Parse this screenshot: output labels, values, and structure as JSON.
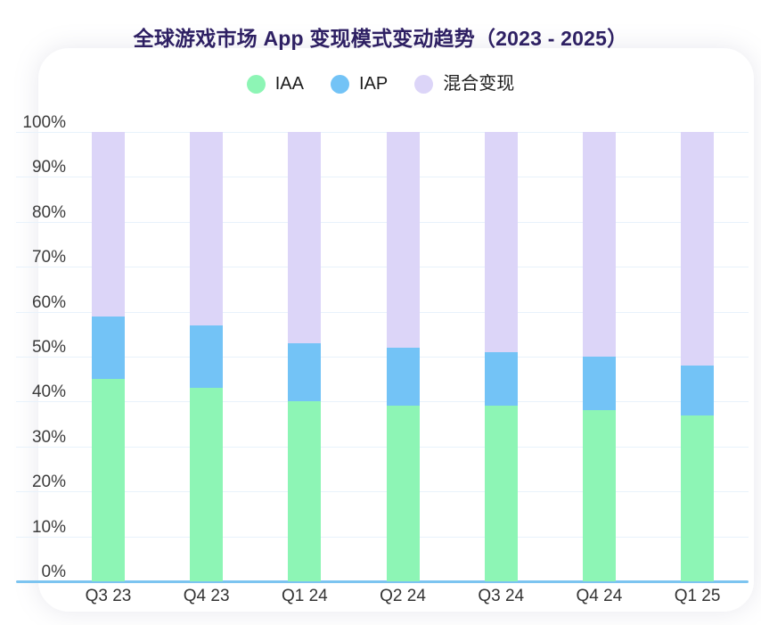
{
  "page": {
    "title": "全球游戏市场 App 变现模式变动趋势（2023 - 2025）"
  },
  "chart_data": {
    "type": "bar",
    "stacked": true,
    "title": "全球游戏市场 App 变现模式变动趋势（2023 - 2025）",
    "unit": "%",
    "categories": [
      "Q3 23",
      "Q4 23",
      "Q1 24",
      "Q2 24",
      "Q3 24",
      "Q4 24",
      "Q1 25"
    ],
    "series": [
      {
        "key": "iaa",
        "name": "IAA",
        "color": "#8df5b5",
        "values": [
          45,
          43,
          40,
          39,
          39,
          38,
          37
        ]
      },
      {
        "key": "iap",
        "name": "IAP",
        "color": "#73c3f6",
        "values": [
          14,
          14,
          13,
          13,
          12,
          12,
          11
        ]
      },
      {
        "key": "mixed",
        "name": "混合变现",
        "color": "#dcd5f8",
        "values": [
          41,
          43,
          47,
          48,
          49,
          50,
          52
        ]
      }
    ],
    "ylim": [
      0,
      100
    ],
    "y_ticks": [
      "100%",
      "90%",
      "80%",
      "70%",
      "60%",
      "50%",
      "40%",
      "30%",
      "20%",
      "10%",
      "0%"
    ],
    "grid": true,
    "legend_position": "top"
  },
  "colors": {
    "title_text": "#2e2063",
    "axis_label_text": "#3c3c3c",
    "x_label_text": "#333333",
    "legend_text": "#1c1c1c",
    "axis_line": "#7cc4f0",
    "gridline": "#e8f2fb",
    "card_background": "#ffffff"
  }
}
